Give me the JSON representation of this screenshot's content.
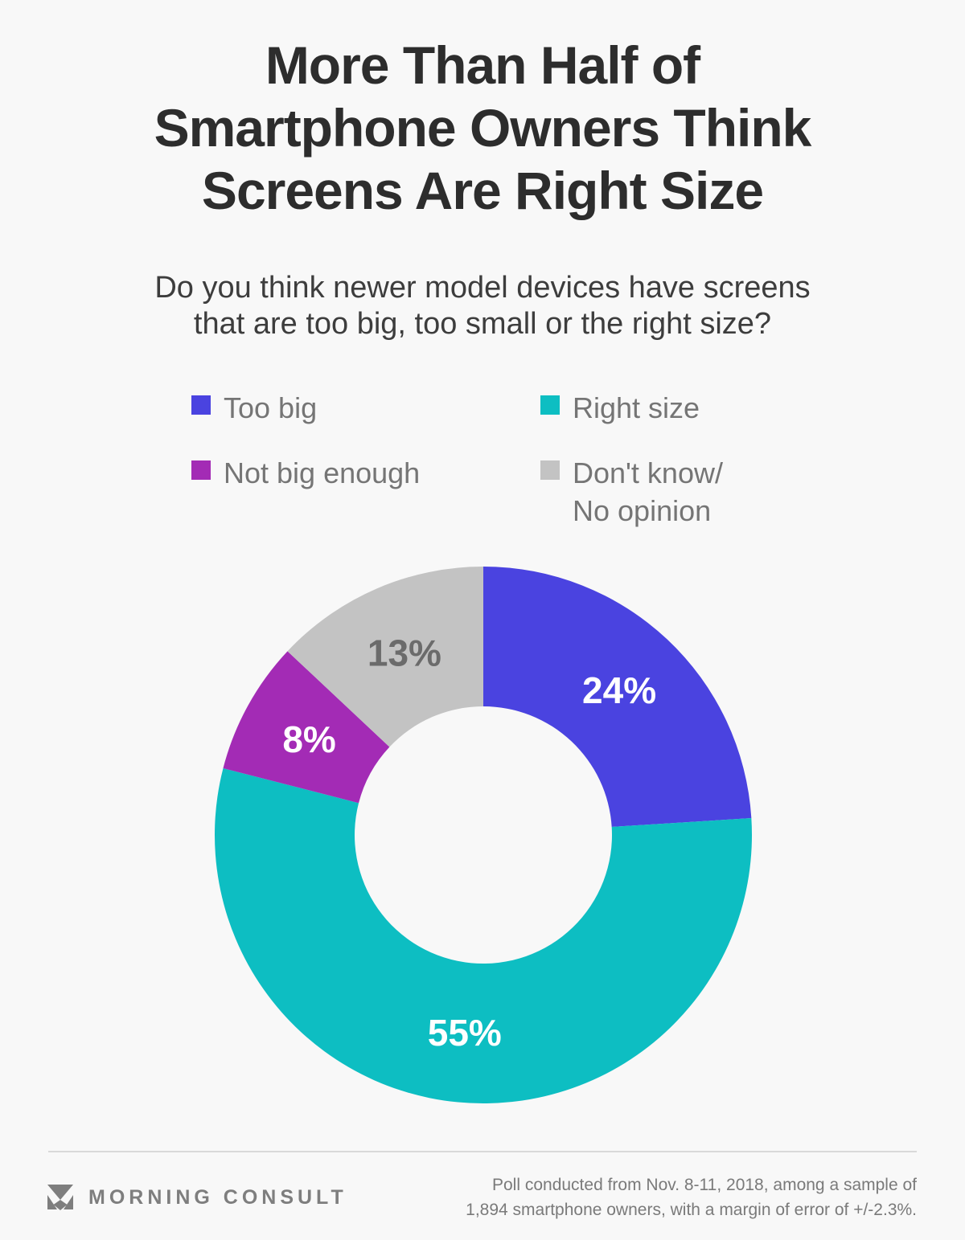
{
  "page": {
    "background": "#f8f8f8"
  },
  "header": {
    "title": "More Than Half of\nSmartphone Owners Think\nScreens Are Right Size",
    "subtitle": "Do you think newer model devices have screens\nthat are too big, too small or the right size?"
  },
  "legend": {
    "items": [
      {
        "label": "Too big"
      },
      {
        "label": "Right size"
      },
      {
        "label": "Not big enough"
      },
      {
        "label": "Don't know/\nNo opinion"
      }
    ]
  },
  "chart_data": {
    "type": "pie",
    "subtype": "donut",
    "title": "More Than Half of Smartphone Owners Think Screens Are Right Size",
    "question": "Do you think newer model devices have screens that are too big, too small or the right size?",
    "categories": [
      "Too big",
      "Right size",
      "Not big enough",
      "Don't know/No opinion"
    ],
    "values": [
      24,
      55,
      8,
      13
    ],
    "unit": "%",
    "labels": [
      "24%",
      "55%",
      "8%",
      "13%"
    ],
    "colors": [
      "#4a43e0",
      "#0dbec2",
      "#a32bb5",
      "#c3c3c3"
    ],
    "label_colors": [
      "#ffffff",
      "#ffffff",
      "#ffffff",
      "#6b6b6b"
    ],
    "start_angle_deg": -90,
    "direction": "clockwise",
    "inner_radius_ratio": 0.48,
    "legend_position": "above"
  },
  "footer": {
    "brand": "MORNING CONSULT",
    "caption": "Poll conducted from Nov. 8-11, 2018, among a sample of\n1,894 smartphone owners, with a margin of error of +/-2.3%."
  }
}
